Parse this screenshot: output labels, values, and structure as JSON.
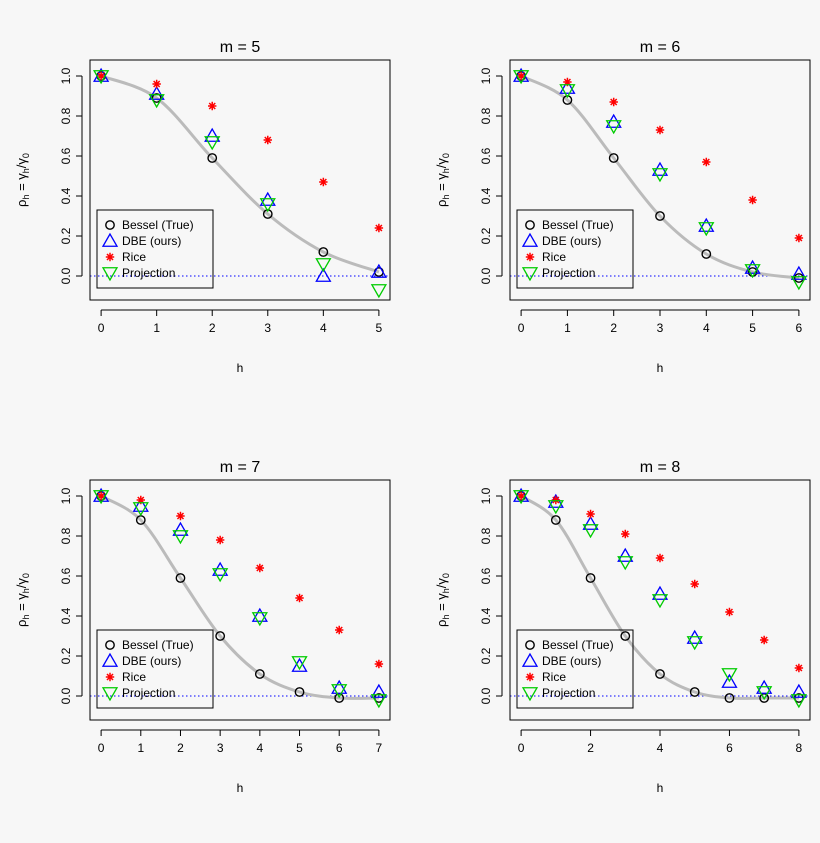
{
  "figure": {
    "background": "#f7f7f7",
    "colors": {
      "bessel": "#000000",
      "bessel_curve": "#bbbbbb",
      "dbe": "#0000ff",
      "rice": "#ff0000",
      "projection": "#00cc00",
      "zero_line": "#0000ff"
    }
  },
  "chart_data": [
    {
      "type": "scatter",
      "title": "m = 5",
      "xlabel": "h",
      "ylabel_main": "ρ",
      "ylabel_sub1": "h",
      "ylabel_eq": " = γ",
      "ylabel_sub2": "h",
      "ylabel_slash": "/γ",
      "ylabel_sub3": "0",
      "xlim": [
        -0.2,
        5.2
      ],
      "ylim": [
        -0.12,
        1.08
      ],
      "xticks": [
        0,
        1,
        2,
        3,
        4,
        5
      ],
      "yticks": [
        "0.0",
        "0.2",
        "0.4",
        "0.6",
        "0.8",
        "1.0"
      ],
      "ytick_values": [
        0,
        0.2,
        0.4,
        0.6,
        0.8,
        1.0
      ],
      "legend": [
        "Bessel (True)",
        "DBE (ours)",
        "Rice",
        "Projection"
      ],
      "legend_position": "bottom-left",
      "series": [
        {
          "name": "Bessel (True)",
          "marker": "circle",
          "x": [
            0,
            1,
            2,
            3,
            4,
            5
          ],
          "values": [
            1.0,
            0.89,
            0.59,
            0.31,
            0.12,
            0.02
          ]
        },
        {
          "name": "DBE (ours)",
          "marker": "triangle-up",
          "x": [
            0,
            1,
            2,
            3,
            4,
            5
          ],
          "values": [
            1.0,
            0.91,
            0.7,
            0.38,
            0.0,
            0.02
          ]
        },
        {
          "name": "Rice",
          "marker": "asterisk",
          "x": [
            0,
            1,
            2,
            3,
            4,
            5
          ],
          "values": [
            1.0,
            0.96,
            0.85,
            0.68,
            0.47,
            0.24
          ]
        },
        {
          "name": "Projection",
          "marker": "triangle-down",
          "x": [
            0,
            1,
            2,
            3,
            4,
            5
          ],
          "values": [
            1.0,
            0.88,
            0.67,
            0.36,
            0.06,
            -0.07
          ]
        }
      ]
    },
    {
      "type": "scatter",
      "title": "m = 6",
      "xlabel": "h",
      "ylabel_main": "ρ",
      "ylabel_sub1": "h",
      "ylabel_eq": " = γ",
      "ylabel_sub2": "h",
      "ylabel_slash": "/γ",
      "ylabel_sub3": "0",
      "xlim": [
        -0.24,
        6.24
      ],
      "ylim": [
        -0.12,
        1.08
      ],
      "xticks": [
        0,
        1,
        2,
        3,
        4,
        5,
        6
      ],
      "yticks": [
        "0.0",
        "0.2",
        "0.4",
        "0.6",
        "0.8",
        "1.0"
      ],
      "ytick_values": [
        0,
        0.2,
        0.4,
        0.6,
        0.8,
        1.0
      ],
      "legend": [
        "Bessel (True)",
        "DBE (ours)",
        "Rice",
        "Projection"
      ],
      "legend_position": "bottom-left",
      "series": [
        {
          "name": "Bessel (True)",
          "marker": "circle",
          "x": [
            0,
            1,
            2,
            3,
            4,
            5,
            6
          ],
          "values": [
            1.0,
            0.88,
            0.59,
            0.3,
            0.11,
            0.02,
            -0.01
          ]
        },
        {
          "name": "DBE (ours)",
          "marker": "triangle-up",
          "x": [
            0,
            1,
            2,
            3,
            4,
            5,
            6
          ],
          "values": [
            1.0,
            0.94,
            0.77,
            0.53,
            0.25,
            0.04,
            0.01
          ]
        },
        {
          "name": "Rice",
          "marker": "asterisk",
          "x": [
            0,
            1,
            2,
            3,
            4,
            5,
            6
          ],
          "values": [
            1.0,
            0.97,
            0.87,
            0.73,
            0.57,
            0.38,
            0.19
          ]
        },
        {
          "name": "Projection",
          "marker": "triangle-down",
          "x": [
            0,
            1,
            2,
            3,
            4,
            5,
            6
          ],
          "values": [
            1.0,
            0.93,
            0.75,
            0.51,
            0.24,
            0.03,
            -0.03
          ]
        }
      ]
    },
    {
      "type": "scatter",
      "title": "m = 7",
      "xlabel": "h",
      "ylabel_main": "ρ",
      "ylabel_sub1": "h",
      "ylabel_eq": " = γ",
      "ylabel_sub2": "h",
      "ylabel_slash": "/γ",
      "ylabel_sub3": "0",
      "xlim": [
        -0.28,
        7.28
      ],
      "ylim": [
        -0.12,
        1.08
      ],
      "xticks": [
        0,
        1,
        2,
        3,
        4,
        5,
        6,
        7
      ],
      "yticks": [
        "0.0",
        "0.2",
        "0.4",
        "0.6",
        "0.8",
        "1.0"
      ],
      "ytick_values": [
        0,
        0.2,
        0.4,
        0.6,
        0.8,
        1.0
      ],
      "legend": [
        "Bessel (True)",
        "DBE (ours)",
        "Rice",
        "Projection"
      ],
      "legend_position": "bottom-left",
      "series": [
        {
          "name": "Bessel (True)",
          "marker": "circle",
          "x": [
            0,
            1,
            2,
            3,
            4,
            5,
            6,
            7
          ],
          "values": [
            1.0,
            0.88,
            0.59,
            0.3,
            0.11,
            0.02,
            -0.01,
            -0.01
          ]
        },
        {
          "name": "DBE (ours)",
          "marker": "triangle-up",
          "x": [
            0,
            1,
            2,
            3,
            4,
            5,
            6,
            7
          ],
          "values": [
            1.0,
            0.95,
            0.83,
            0.63,
            0.4,
            0.15,
            0.04,
            0.02
          ]
        },
        {
          "name": "Rice",
          "marker": "asterisk",
          "x": [
            0,
            1,
            2,
            3,
            4,
            5,
            6,
            7
          ],
          "values": [
            1.0,
            0.98,
            0.9,
            0.78,
            0.64,
            0.49,
            0.33,
            0.16
          ]
        },
        {
          "name": "Projection",
          "marker": "triangle-down",
          "x": [
            0,
            1,
            2,
            3,
            4,
            5,
            6,
            7
          ],
          "values": [
            1.0,
            0.94,
            0.8,
            0.61,
            0.39,
            0.17,
            0.03,
            -0.02
          ]
        }
      ]
    },
    {
      "type": "scatter",
      "title": "m = 8",
      "xlabel": "h",
      "ylabel_main": "ρ",
      "ylabel_sub1": "h",
      "ylabel_eq": " = γ",
      "ylabel_sub2": "h",
      "ylabel_slash": "/γ",
      "ylabel_sub3": "0",
      "xlim": [
        -0.32,
        8.32
      ],
      "ylim": [
        -0.12,
        1.08
      ],
      "xticks": [
        0,
        2,
        4,
        6,
        8
      ],
      "yticks": [
        "0.0",
        "0.2",
        "0.4",
        "0.6",
        "0.8",
        "1.0"
      ],
      "ytick_values": [
        0,
        0.2,
        0.4,
        0.6,
        0.8,
        1.0
      ],
      "legend": [
        "Bessel (True)",
        "DBE (ours)",
        "Rice",
        "Projection"
      ],
      "legend_position": "bottom-left",
      "series": [
        {
          "name": "Bessel (True)",
          "marker": "circle",
          "x": [
            0,
            1,
            2,
            3,
            4,
            5,
            6,
            7,
            8
          ],
          "values": [
            1.0,
            0.88,
            0.59,
            0.3,
            0.11,
            0.02,
            -0.01,
            -0.01,
            -0.01
          ]
        },
        {
          "name": "DBE (ours)",
          "marker": "triangle-up",
          "x": [
            0,
            1,
            2,
            3,
            4,
            5,
            6,
            7,
            8
          ],
          "values": [
            1.0,
            0.97,
            0.86,
            0.7,
            0.51,
            0.29,
            0.07,
            0.04,
            0.02
          ]
        },
        {
          "name": "Rice",
          "marker": "asterisk",
          "x": [
            0,
            1,
            2,
            3,
            4,
            5,
            6,
            7,
            8
          ],
          "values": [
            1.0,
            0.98,
            0.91,
            0.81,
            0.69,
            0.56,
            0.42,
            0.28,
            0.14
          ]
        },
        {
          "name": "Projection",
          "marker": "triangle-down",
          "x": [
            0,
            1,
            2,
            3,
            4,
            5,
            6,
            7,
            8
          ],
          "values": [
            1.0,
            0.95,
            0.83,
            0.67,
            0.48,
            0.27,
            0.11,
            0.02,
            -0.02
          ]
        }
      ]
    }
  ]
}
